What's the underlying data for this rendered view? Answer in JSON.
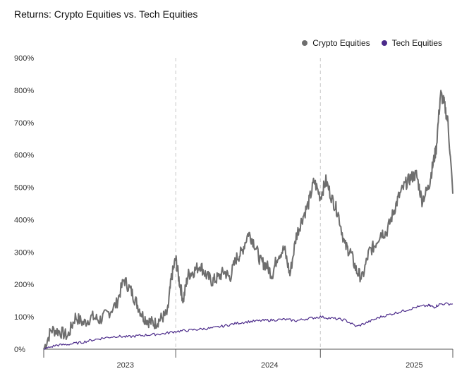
{
  "title": "Returns: Crypto Equities vs. Tech Equities",
  "colors": {
    "crypto": "#6e6e6e",
    "tech": "#4b2a8a",
    "grid": "#c8c8c8",
    "axis": "#555555"
  },
  "chart_data": {
    "type": "line",
    "title": "Returns: Crypto Equities vs. Tech Equities",
    "xlabel": "",
    "ylabel": "",
    "x_axis_type": "date",
    "xlim": [
      "2022-08-01",
      "2025-06-01"
    ],
    "ylim": [
      0,
      900
    ],
    "y_ticks": [
      "0%",
      "100%",
      "200%",
      "300%",
      "400%",
      "500%",
      "600%",
      "700%",
      "800%",
      "900%"
    ],
    "y_tick_values": [
      0,
      100,
      200,
      300,
      400,
      500,
      600,
      700,
      800,
      900
    ],
    "x_tick_labels": [
      "2023",
      "2024",
      "2025"
    ],
    "x_tick_positions": [
      "2023-01-01",
      "2024-01-01",
      "2025-01-01"
    ],
    "x_boundaries": [
      "2023-07-01",
      "2024-07-01"
    ],
    "grid": "vertical dashed",
    "legend_position": "top-right",
    "series": [
      {
        "name": "Crypto Equities",
        "x": [
          "2022-08-01",
          "2022-08-20",
          "2022-09-10",
          "2022-10-01",
          "2022-10-20",
          "2022-11-10",
          "2022-12-01",
          "2022-12-20",
          "2023-01-10",
          "2023-02-01",
          "2023-02-20",
          "2023-03-10",
          "2023-03-25",
          "2023-04-10",
          "2023-04-25",
          "2023-05-10",
          "2023-05-25",
          "2023-06-10",
          "2023-06-20",
          "2023-07-01",
          "2023-07-10",
          "2023-07-20",
          "2023-08-01",
          "2023-08-15",
          "2023-09-01",
          "2023-09-15",
          "2023-10-01",
          "2023-10-15",
          "2023-11-01",
          "2023-11-15",
          "2023-12-01",
          "2023-12-15",
          "2024-01-01",
          "2024-01-15",
          "2024-02-01",
          "2024-02-15",
          "2024-03-01",
          "2024-03-15",
          "2024-04-01",
          "2024-04-15",
          "2024-05-01",
          "2024-05-15",
          "2024-06-01",
          "2024-06-15",
          "2024-07-01",
          "2024-07-15",
          "2024-08-01",
          "2024-08-15",
          "2024-09-01",
          "2024-09-15",
          "2024-10-01",
          "2024-10-15",
          "2024-11-01",
          "2024-11-15",
          "2024-12-01",
          "2024-12-15",
          "2025-01-01",
          "2025-01-15",
          "2025-02-01",
          "2025-02-15",
          "2025-03-01",
          "2025-03-15",
          "2025-04-01",
          "2025-04-10",
          "2025-04-20",
          "2025-05-01",
          "2025-05-10",
          "2025-05-20",
          "2025-06-01"
        ],
        "values": [
          0,
          60,
          55,
          40,
          100,
          80,
          100,
          90,
          110,
          140,
          215,
          180,
          140,
          100,
          85,
          80,
          95,
          110,
          220,
          280,
          210,
          150,
          230,
          240,
          260,
          230,
          210,
          220,
          240,
          220,
          280,
          300,
          360,
          330,
          270,
          260,
          230,
          290,
          310,
          230,
          350,
          400,
          450,
          520,
          470,
          520,
          460,
          420,
          320,
          300,
          240,
          220,
          300,
          320,
          360,
          360,
          420,
          470,
          510,
          530,
          540,
          460,
          500,
          560,
          620,
          790,
          760,
          700,
          480
        ]
      },
      {
        "name": "Tech Equities",
        "x": [
          "2022-08-01",
          "2022-09-01",
          "2022-10-01",
          "2022-11-01",
          "2022-12-01",
          "2023-01-01",
          "2023-02-01",
          "2023-03-01",
          "2023-04-01",
          "2023-05-01",
          "2023-06-01",
          "2023-07-01",
          "2023-08-01",
          "2023-09-01",
          "2023-10-01",
          "2023-11-01",
          "2023-12-01",
          "2024-01-01",
          "2024-02-01",
          "2024-03-01",
          "2024-04-01",
          "2024-05-01",
          "2024-06-01",
          "2024-07-01",
          "2024-08-01",
          "2024-09-01",
          "2024-10-01",
          "2024-11-01",
          "2024-12-01",
          "2025-01-01",
          "2025-02-01",
          "2025-03-01",
          "2025-04-01",
          "2025-04-15",
          "2025-05-01",
          "2025-06-01"
        ],
        "values": [
          0,
          12,
          15,
          20,
          28,
          35,
          40,
          38,
          42,
          45,
          48,
          55,
          58,
          62,
          65,
          72,
          80,
          85,
          88,
          90,
          92,
          88,
          95,
          100,
          95,
          90,
          70,
          85,
          100,
          110,
          120,
          130,
          135,
          130,
          140,
          140
        ]
      }
    ]
  }
}
